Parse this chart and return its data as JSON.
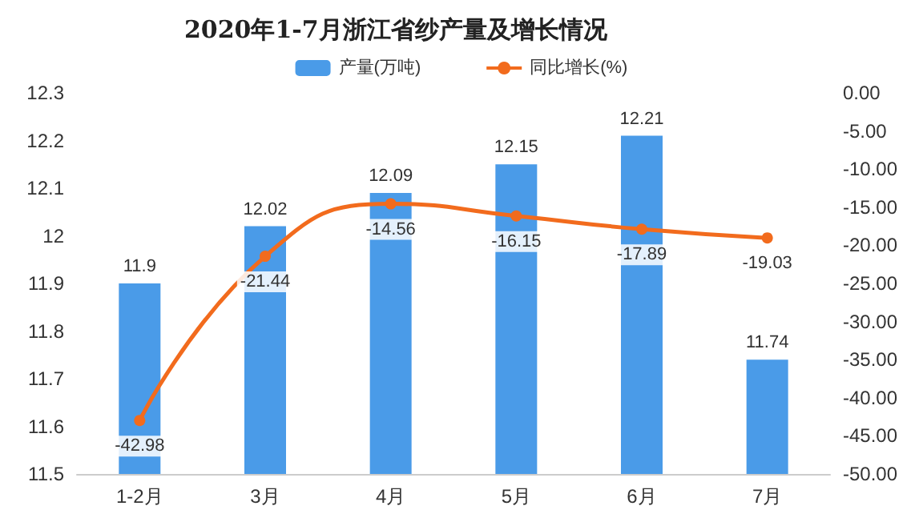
{
  "chart_data": {
    "type": "bar",
    "title": "2020年1-7月浙江省纱产量及增长情况",
    "categories": [
      "1-2月",
      "3月",
      "4月",
      "5月",
      "6月",
      "7月"
    ],
    "series": [
      {
        "name": "产量(万吨)",
        "color": "#4a9be8",
        "values": [
          11.9,
          12.02,
          12.09,
          12.15,
          12.21,
          11.74
        ]
      },
      {
        "name": "同比增长(%)",
        "type": "line",
        "axis": "y2",
        "color": "#f26b1d",
        "values": [
          -42.98,
          -21.44,
          -14.56,
          -16.15,
          -17.89,
          -19.03
        ]
      }
    ],
    "ylim": [
      11.5,
      12.3
    ],
    "yticks": [
      11.5,
      11.6,
      11.7,
      11.8,
      11.9,
      12,
      12.1,
      12.2,
      12.3
    ],
    "y2lim": [
      -50,
      0
    ],
    "y2ticks": [
      {
        "value": 0,
        "label": "0.00"
      },
      {
        "value": -5,
        "label": "-5.00"
      },
      {
        "value": -10,
        "label": "-10.00"
      },
      {
        "value": -15,
        "label": "-15.00"
      },
      {
        "value": -20,
        "label": "-20.00"
      },
      {
        "value": -25,
        "label": "-25.00"
      },
      {
        "value": -30,
        "label": "-30.00"
      },
      {
        "value": -35,
        "label": "-35.00"
      },
      {
        "value": -40,
        "label": "-40.00"
      },
      {
        "value": -45,
        "label": "-45.00"
      },
      {
        "value": -50,
        "label": "-50.00"
      }
    ],
    "data_labels": true,
    "legend": "top",
    "marker": "circle",
    "grid": false
  }
}
